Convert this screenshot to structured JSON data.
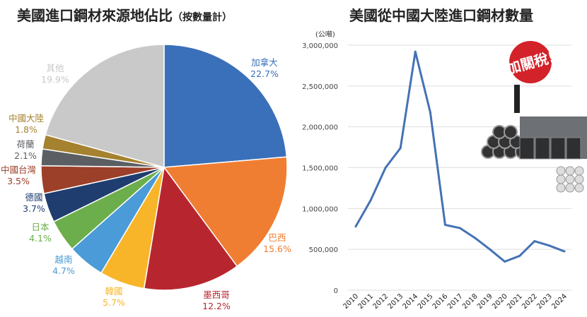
{
  "chart_data": [
    {
      "type": "pie",
      "title": "美國進口鋼材來源地佔比",
      "subtitle": "（按數量計）",
      "start": "top",
      "direction": "clockwise",
      "slices": [
        {
          "label": "加拿大",
          "value": 22.7,
          "display": "22.7%",
          "color": "#3a70b9"
        },
        {
          "label": "巴西",
          "value": 15.6,
          "display": "15.6%",
          "color": "#f07e32"
        },
        {
          "label": "墨西哥",
          "value": 12.2,
          "display": "12.2%",
          "color": "#b7262f"
        },
        {
          "label": "韓國",
          "value": 5.7,
          "display": "5.7%",
          "color": "#f8b52a"
        },
        {
          "label": "越南",
          "value": 4.7,
          "display": "4.7%",
          "color": "#4a9bd7"
        },
        {
          "label": "日本",
          "value": 4.1,
          "display": "4.1%",
          "color": "#6bae4b"
        },
        {
          "label": "德國",
          "value": 3.7,
          "display": "3.7%",
          "color": "#1f3d6f"
        },
        {
          "label": "中國台灣",
          "value": 3.5,
          "display": "3.5%",
          "color": "#9c4029"
        },
        {
          "label": "荷蘭",
          "value": 2.1,
          "display": "2.1%",
          "color": "#5b5f63"
        },
        {
          "label": "中國大陸",
          "value": 1.8,
          "display": "1.8%",
          "color": "#a5822f"
        },
        {
          "label": "其他",
          "value": 19.9,
          "display": "19.9%",
          "color": "#c9c9c9"
        }
      ]
    },
    {
      "type": "line",
      "title": "美國從中國大陸進口鋼材數量",
      "ylabel": "(公噸)",
      "x": [
        "2010",
        "2011",
        "2012",
        "2013",
        "2014",
        "2015",
        "2016",
        "2017",
        "2018",
        "2019",
        "2020",
        "2021",
        "2022",
        "2023",
        "2024"
      ],
      "values": [
        780000,
        1100000,
        1500000,
        1740000,
        2920000,
        2180000,
        800000,
        760000,
        640000,
        500000,
        350000,
        420000,
        600000,
        545000,
        475000
      ],
      "ylim": [
        0,
        3000000
      ],
      "yticks": [
        "0",
        "500,000",
        "1,000,000",
        "1,500,000",
        "2,000,000",
        "2,500,000",
        "3,000,000"
      ],
      "grid": true,
      "color": "#4472b4",
      "annotation": "加關稅!"
    }
  ]
}
